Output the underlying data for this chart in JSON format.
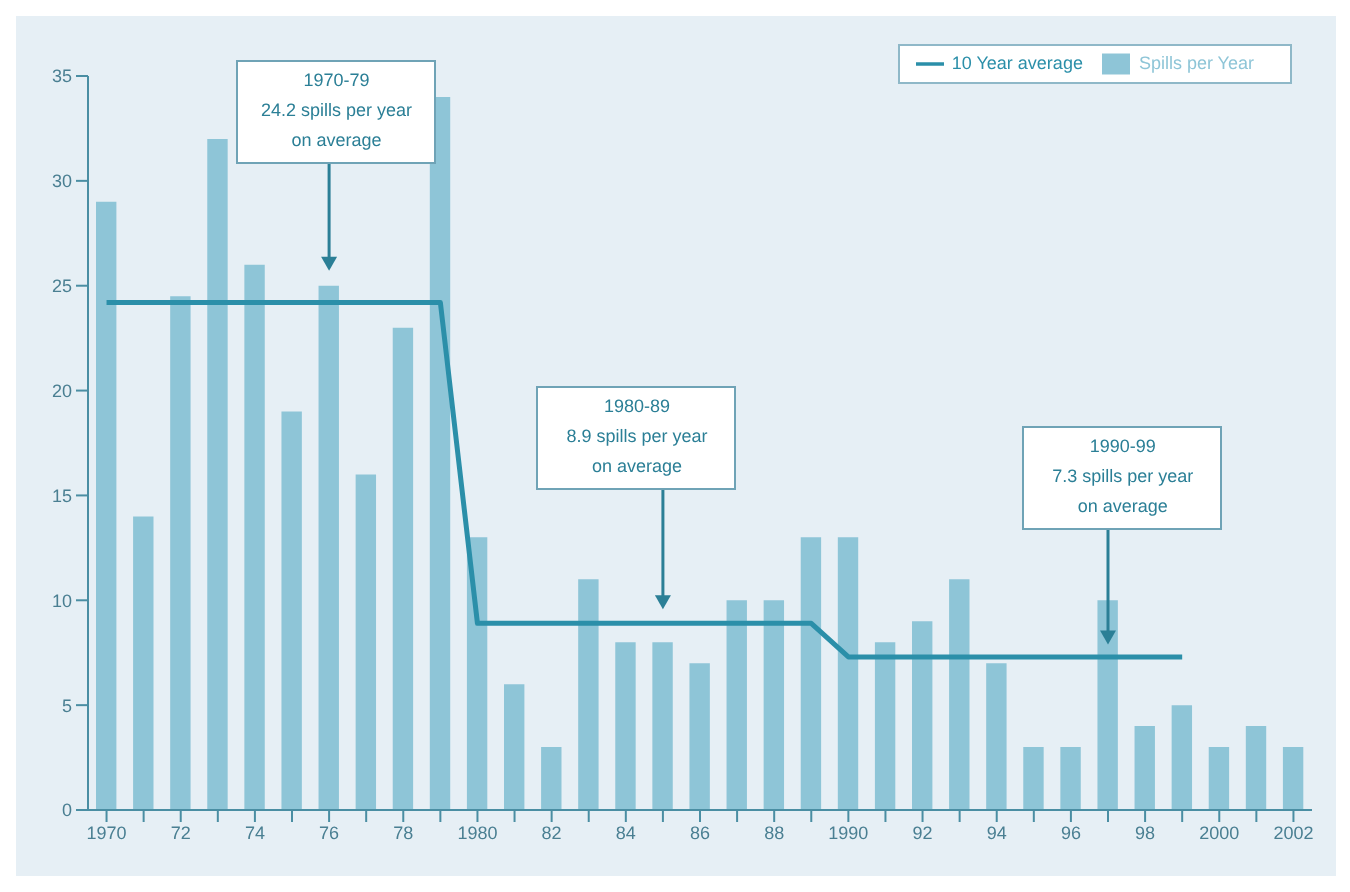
{
  "chart_data": {
    "type": "bar",
    "categories": [
      "1970",
      null,
      "72",
      null,
      "74",
      null,
      "76",
      null,
      "78",
      null,
      "1980",
      null,
      "82",
      null,
      "84",
      null,
      "86",
      null,
      "88",
      null,
      "1990",
      null,
      "92",
      null,
      "94",
      null,
      "96",
      null,
      "98",
      null,
      "2000",
      null,
      "2002"
    ],
    "series": [
      {
        "name": "Spills per Year",
        "color": "#8ec5d7",
        "values": [
          29,
          14,
          24.5,
          32,
          26,
          19,
          25,
          16,
          23,
          34,
          13,
          6,
          3,
          11,
          8,
          8,
          7,
          10,
          10,
          13,
          13,
          8,
          9,
          11,
          7,
          3,
          3,
          10,
          4,
          5,
          3,
          4,
          3
        ]
      },
      {
        "name": "10 Year average",
        "type": "line",
        "color": "#2b8fa9",
        "values": [
          24.2,
          24.2,
          24.2,
          24.2,
          24.2,
          24.2,
          24.2,
          24.2,
          24.2,
          24.2,
          8.9,
          8.9,
          8.9,
          8.9,
          8.9,
          8.9,
          8.9,
          8.9,
          8.9,
          8.9,
          7.3,
          7.3,
          7.3,
          7.3,
          7.3,
          7.3,
          7.3,
          7.3,
          7.3,
          7.3,
          null,
          null,
          null
        ]
      }
    ],
    "ylim": [
      0,
      35
    ],
    "yticks": [
      0,
      5,
      10,
      15,
      20,
      25,
      30,
      35
    ],
    "grid": false,
    "legend": "top right",
    "marker": "none",
    "line_style": "solid",
    "annotations": [
      "1970-79\n24.2 spills per year\non average",
      "1980-89\n8.9 spills per year\non average",
      "1990-99\n7.3 spills per year\non average"
    ]
  }
}
